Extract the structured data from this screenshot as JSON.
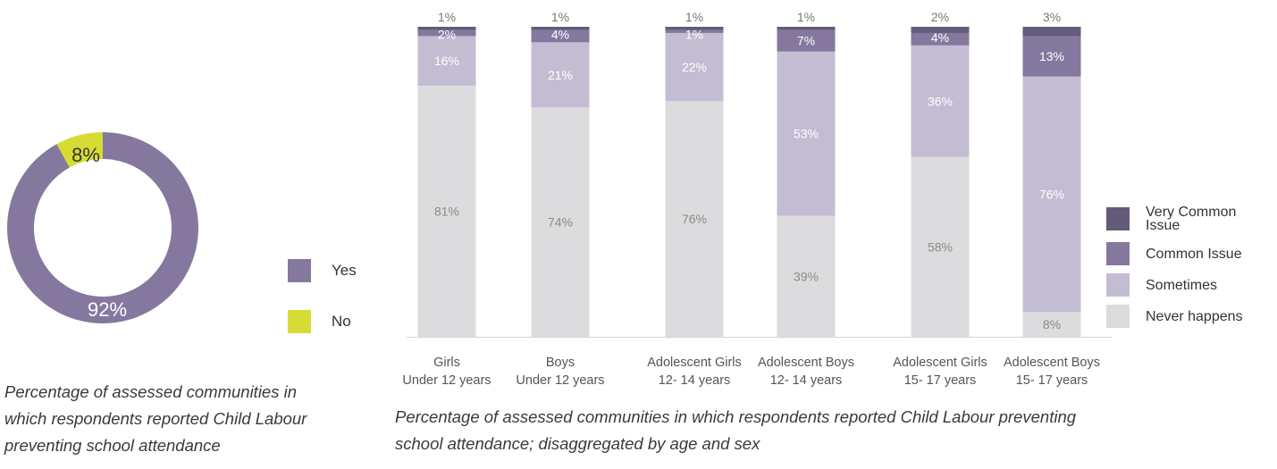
{
  "colors": {
    "yes": "#85789f",
    "no": "#d6dc33",
    "very_common": "#645a79",
    "common": "#85789f",
    "sometimes": "#c4bcd2",
    "never": "#dcdcdf"
  },
  "donut": {
    "slices": [
      {
        "name": "Yes",
        "value": 92,
        "label": "92%"
      },
      {
        "name": "No",
        "value": 8,
        "label": "8%"
      }
    ],
    "legend": [
      "Yes",
      "No"
    ],
    "caption_lines": [
      "Percentage of assessed communities in",
      "which respondents reported Child Labour",
      "preventing school attendance"
    ]
  },
  "chart_data": {
    "type": "bar",
    "stacked": true,
    "categories": [
      [
        "Girls",
        "Under 12 years"
      ],
      [
        "Boys",
        "Under 12 years"
      ],
      [
        "Adolescent Girls",
        "12- 14 years"
      ],
      [
        "Adolescent Boys",
        "12- 14 years"
      ],
      [
        "Adolescent Girls",
        "15- 17 years"
      ],
      [
        "Adolescent Boys",
        "15- 17 years"
      ]
    ],
    "series": [
      {
        "name": "Never happens",
        "values": [
          81,
          74,
          76,
          39,
          58,
          8
        ],
        "labels": [
          "81%",
          "74%",
          "76%",
          "39%",
          "58%",
          "8%"
        ]
      },
      {
        "name": "Sometimes",
        "values": [
          16,
          21,
          22,
          53,
          36,
          76
        ],
        "labels": [
          "16%",
          "21%",
          "22%",
          "53%",
          "36%",
          "76%"
        ]
      },
      {
        "name": "Common Issue",
        "values": [
          2,
          4,
          1,
          7,
          4,
          13
        ],
        "labels": [
          "2%",
          "4%",
          "1%",
          "7%",
          "4%",
          "13%"
        ]
      },
      {
        "name": "Very Common Issue",
        "values": [
          1,
          1,
          1,
          1,
          2,
          3
        ],
        "labels": [
          "1%",
          "1%",
          "1%",
          "1%",
          "2%",
          "3%"
        ]
      }
    ],
    "ylim": [
      0,
      100
    ],
    "legend_placement": "right",
    "legend": [
      "Very Common Issue",
      "Common Issue",
      "Sometimes",
      "Never happens"
    ],
    "caption_lines": [
      "Percentage of assessed communities in which respondents reported Child Labour preventing",
      "school attendance; disaggregated by age and sex"
    ]
  }
}
